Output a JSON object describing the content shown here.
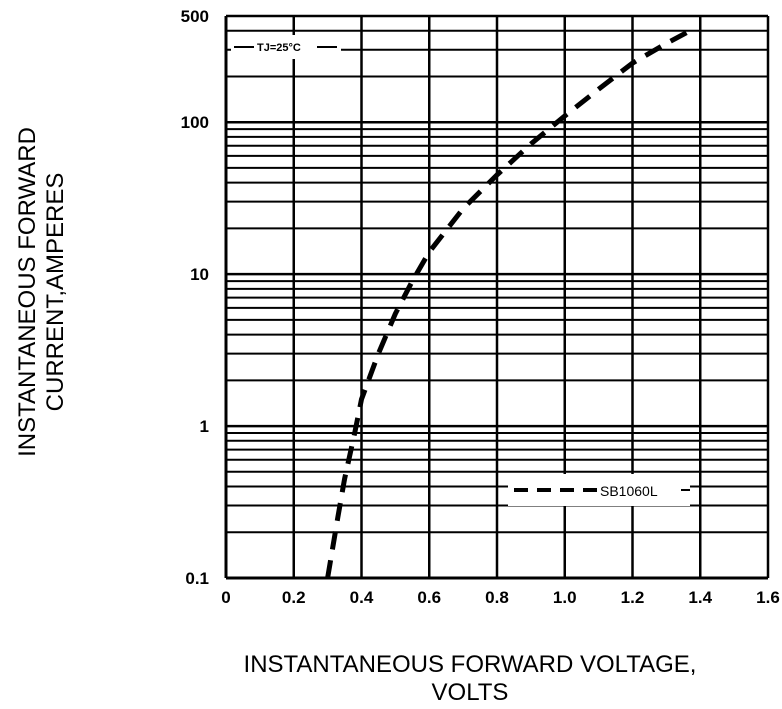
{
  "chart_data": {
    "type": "line",
    "xlabel_line1": "INSTANTANEOUS FORWARD VOLTAGE,",
    "xlabel_line2": "VOLTS",
    "ylabel_line1": "INSTANTANEOUS FORWARD",
    "ylabel_line2": "CURRENT,AMPERES",
    "xlim": [
      0,
      1.6
    ],
    "ylim": [
      0.1,
      500
    ],
    "yscale": "log",
    "grid": true,
    "x_ticks": [
      "0",
      "0.2",
      "0.4",
      "0.6",
      "0.8",
      "1.0",
      "1.2",
      "1.4",
      "1.6"
    ],
    "y_ticks": [
      {
        "value": 0.1,
        "label": "0.1"
      },
      {
        "value": 1,
        "label": "1"
      },
      {
        "value": 10,
        "label": "10"
      },
      {
        "value": 100,
        "label": "100"
      },
      {
        "value": 500,
        "label": "500"
      }
    ],
    "condition_label": "TJ=25°C",
    "legend_position": "lower-right",
    "series": [
      {
        "name": "SB1060L",
        "style": "dashed",
        "color": "#000000",
        "x": [
          0.3,
          0.33,
          0.35,
          0.38,
          0.4,
          0.45,
          0.5,
          0.55,
          0.6,
          0.7,
          0.8,
          0.9,
          1.0,
          1.1,
          1.2,
          1.3,
          1.37
        ],
        "y": [
          0.1,
          0.25,
          0.45,
          0.9,
          1.5,
          3.0,
          5.5,
          9.0,
          14.0,
          27.0,
          45.0,
          72.0,
          110.0,
          165.0,
          245.0,
          330.0,
          400.0
        ]
      }
    ]
  }
}
